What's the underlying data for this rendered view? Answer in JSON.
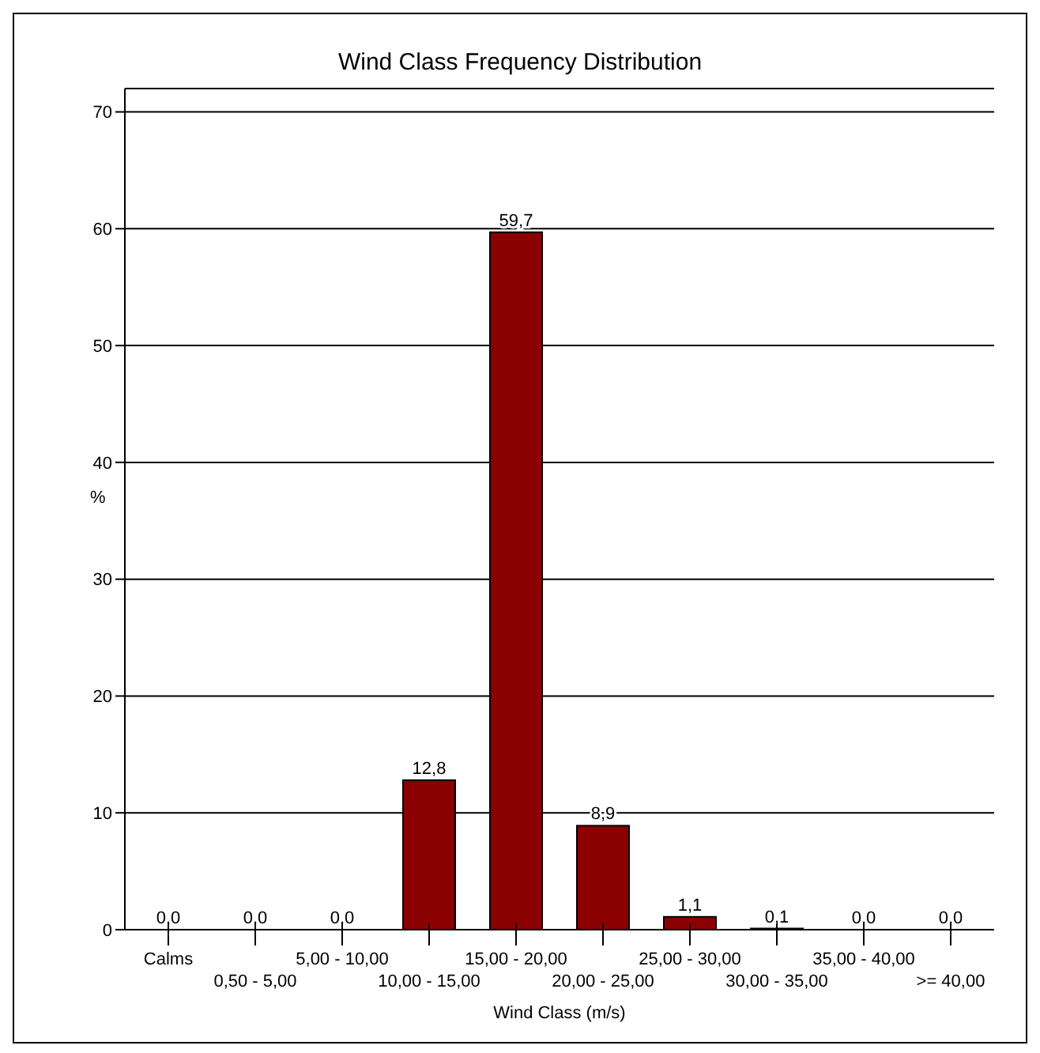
{
  "chart_data": {
    "type": "bar",
    "title": "Wind Class Frequency Distribution",
    "xlabel": "Wind Class (m/s)",
    "ylabel": "%",
    "categories": [
      "Calms",
      "0,50 - 5,00",
      "5,00 - 10,00",
      "10,00 - 15,00",
      "15,00 - 20,00",
      "20,00 - 25,00",
      "25,00 - 30,00",
      "30,00 - 35,00",
      "35,00 - 40,00",
      ">= 40,00"
    ],
    "values": [
      0,
      0,
      0,
      12.8,
      59.7,
      8.9,
      1.1,
      0.1,
      0,
      0
    ],
    "value_labels": [
      "0,0",
      "0,0",
      "0,0",
      "12,8",
      "59,7",
      "8,9",
      "1,1",
      "0,1",
      "0,0",
      "0,0"
    ],
    "color": "#8b0000",
    "ylim": [
      0,
      72
    ],
    "yticks": [
      0,
      10,
      20,
      30,
      40,
      50,
      60,
      70
    ],
    "grid": "y"
  }
}
